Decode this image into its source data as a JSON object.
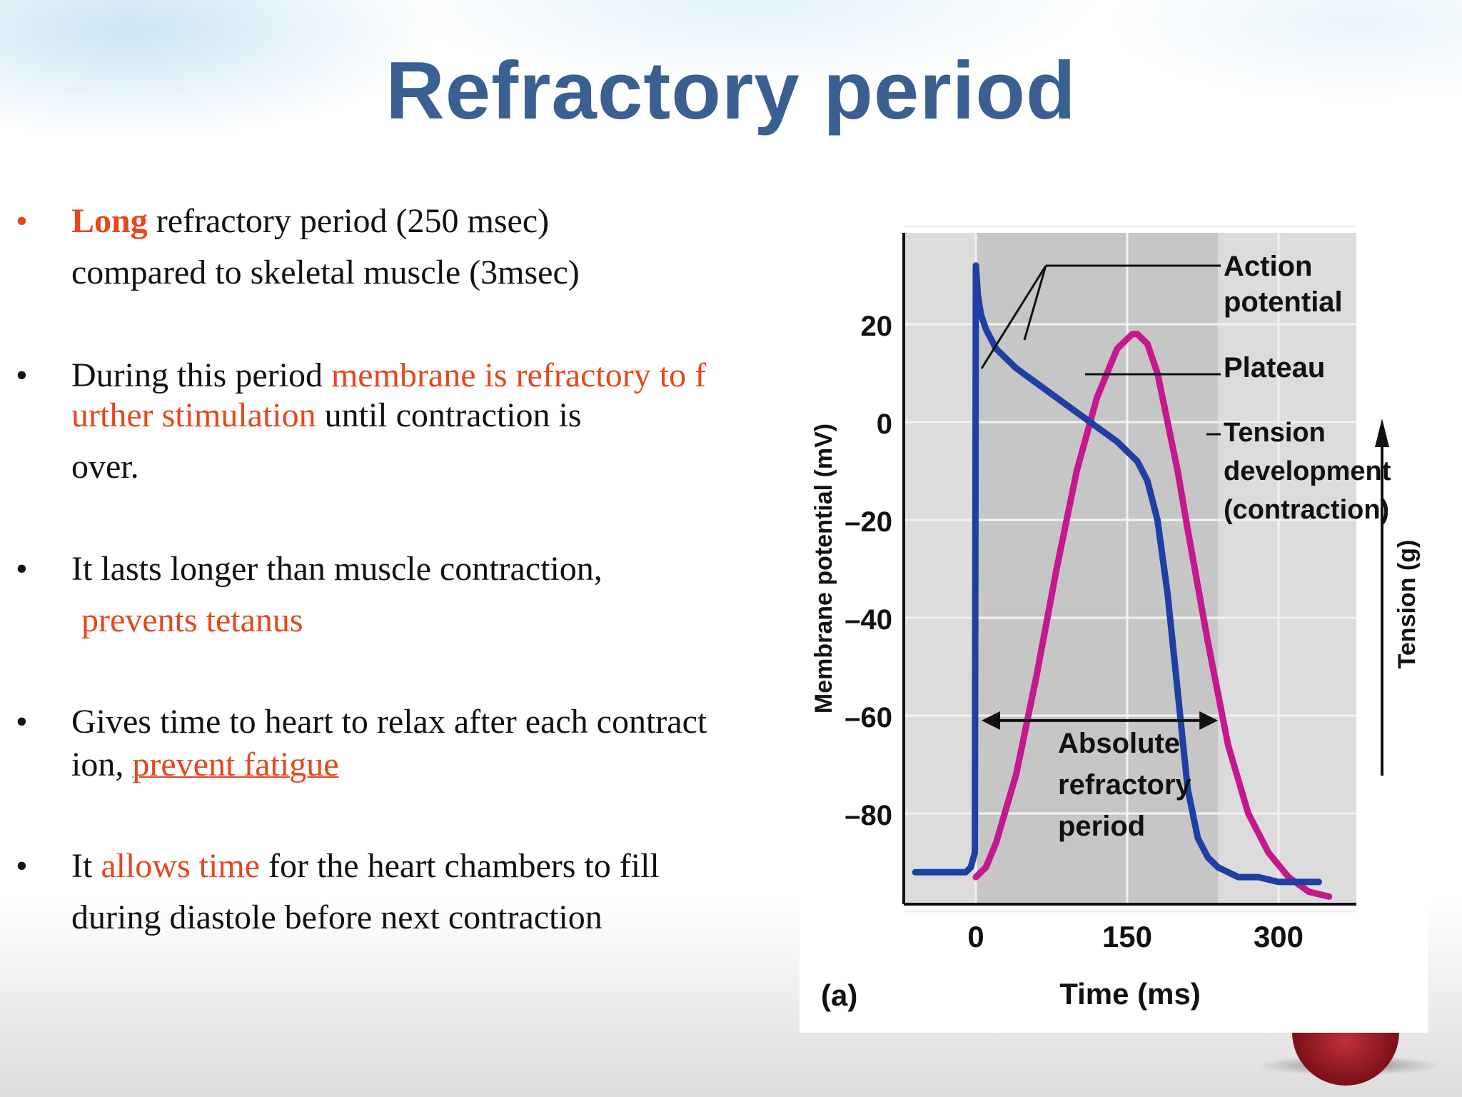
{
  "slide": {
    "title": "Refractory period",
    "bullets": [
      {
        "lines": [
          {
            "segments": [
              {
                "text": "Long",
                "style": "red-bold"
              },
              {
                "text": " refractory period (250 msec)",
                "style": "normal"
              }
            ]
          },
          {
            "segments": [
              {
                "text": "compared to skeletal muscle (3msec)",
                "style": "normal"
              }
            ]
          }
        ]
      },
      {
        "lines": [
          {
            "segments": [
              {
                "text": "During this period ",
                "style": "normal"
              },
              {
                "text": "membrane is refractory to f",
                "style": "red"
              }
            ]
          },
          {
            "segments": [
              {
                "text": "urther stimulation",
                "style": "red"
              },
              {
                "text": " until contraction is",
                "style": "normal"
              }
            ]
          },
          {
            "segments": [
              {
                "text": "over.",
                "style": "normal"
              }
            ]
          }
        ]
      },
      {
        "lines": [
          {
            "segments": [
              {
                "text": "It lasts longer than muscle contraction,",
                "style": "normal"
              }
            ]
          },
          {
            "segments": [
              {
                "text": "prevents tetanus",
                "style": "red"
              }
            ]
          }
        ]
      },
      {
        "lines": [
          {
            "segments": [
              {
                "text": "Gives time to heart to relax after each contract",
                "style": "normal"
              }
            ]
          },
          {
            "segments": [
              {
                "text": "ion, ",
                "style": "normal"
              },
              {
                "text": "prevent fatigue",
                "style": "red-underline"
              }
            ]
          }
        ]
      },
      {
        "lines": [
          {
            "segments": [
              {
                "text": "It ",
                "style": "normal"
              },
              {
                "text": "allows time",
                "style": "red"
              },
              {
                "text": " for the heart chambers to fill",
                "style": "normal"
              }
            ]
          },
          {
            "segments": [
              {
                "text": "during diastole before next contraction",
                "style": "normal"
              }
            ]
          }
        ]
      }
    ],
    "bullet_char": "•"
  },
  "figure": {
    "panel_label": "(a)",
    "annotations": {
      "action_potential": [
        "Action",
        "potential"
      ],
      "plateau": [
        "Plateau"
      ],
      "tension": [
        "Tension",
        "development",
        "(contraction)"
      ],
      "absolute_refractory": [
        "Absolute",
        "refractory",
        "period"
      ]
    },
    "right_axis_label": "Tension (g)"
  },
  "chart_data": {
    "type": "line",
    "xlabel": "Time (ms)",
    "ylabel": "Membrane potential (mV)",
    "x_ticks": [
      0,
      150,
      300
    ],
    "y_ticks": [
      20,
      0,
      -20,
      -40,
      -60,
      -80
    ],
    "xlim": [
      -60,
      360
    ],
    "ylim": [
      -100,
      40
    ],
    "series": [
      {
        "name": "Action potential",
        "color": "#1f3fa3",
        "x": [
          -60,
          -10,
          -5,
          -1,
          0,
          2,
          5,
          10,
          20,
          40,
          60,
          80,
          100,
          120,
          140,
          160,
          170,
          180,
          190,
          200,
          210,
          220,
          230,
          240,
          250,
          260,
          280,
          300,
          320,
          340
        ],
        "y": [
          -92,
          -92,
          -91,
          -88,
          32,
          26,
          22,
          19,
          15,
          11,
          8,
          5,
          2,
          -1,
          -4,
          -8,
          -12,
          -20,
          -35,
          -55,
          -75,
          -85,
          -89,
          -91,
          -92,
          -93,
          -93,
          -94,
          -94,
          -94
        ]
      },
      {
        "name": "Tension development (contraction)",
        "color": "#c4188c",
        "x": [
          0,
          10,
          20,
          40,
          60,
          80,
          100,
          120,
          140,
          155,
          160,
          170,
          180,
          200,
          210,
          230,
          250,
          270,
          290,
          310,
          330,
          350
        ],
        "y": [
          -93,
          -91,
          -86,
          -72,
          -52,
          -30,
          -10,
          5,
          15,
          18,
          18,
          16,
          10,
          -10,
          -22,
          -45,
          -66,
          -80,
          -88,
          -93,
          -96,
          -97
        ]
      }
    ],
    "absolute_refractory_period": [
      0,
      240
    ],
    "shaded_region": [
      0,
      240
    ]
  }
}
